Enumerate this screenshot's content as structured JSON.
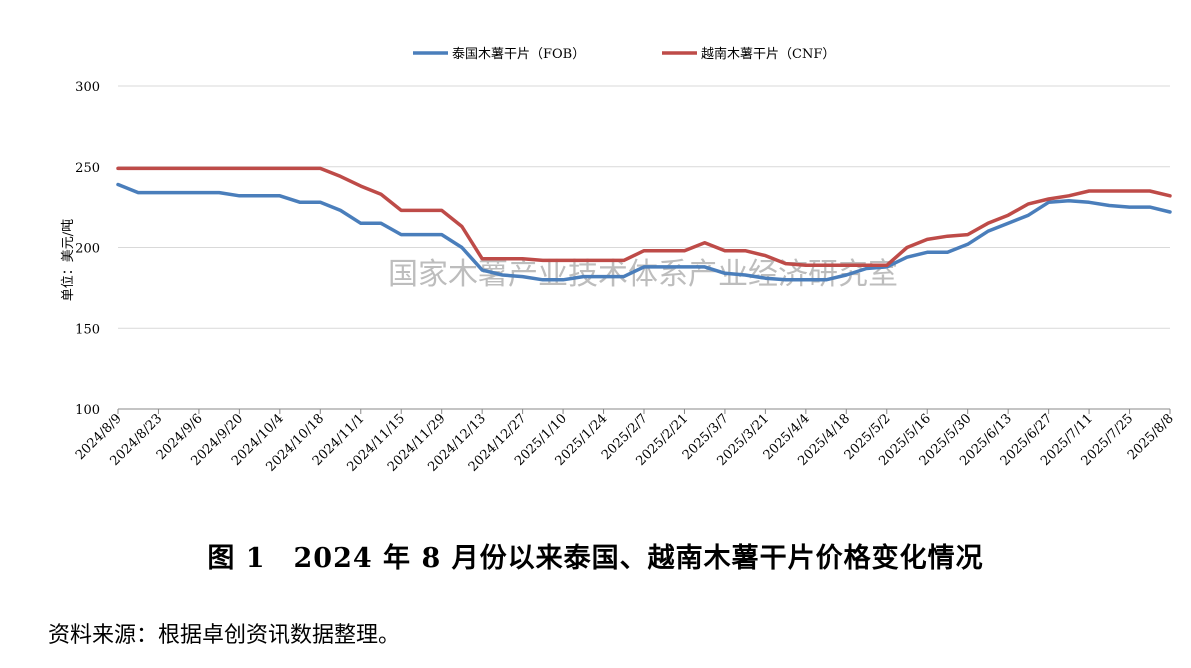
{
  "chart_data": {
    "type": "line",
    "ylabel": "单位：美元/吨",
    "ylim": [
      100,
      300
    ],
    "yticks": [
      100,
      150,
      200,
      250,
      300
    ],
    "grid": true,
    "legend_position": "top-center",
    "watermark": "国家木薯产业技术体系产业经济研究室",
    "x": [
      "2024/8/9",
      "2024/8/16",
      "2024/8/23",
      "2024/8/30",
      "2024/9/6",
      "2024/9/13",
      "2024/9/20",
      "2024/9/27",
      "2024/10/4",
      "2024/10/11",
      "2024/10/18",
      "2024/10/25",
      "2024/11/1",
      "2024/11/8",
      "2024/11/15",
      "2024/11/22",
      "2024/11/29",
      "2024/12/6",
      "2024/12/13",
      "2024/12/20",
      "2024/12/27",
      "2025/1/3",
      "2025/1/10",
      "2025/1/17",
      "2025/1/24",
      "2025/1/31",
      "2025/2/7",
      "2025/2/14",
      "2025/2/21",
      "2025/2/28",
      "2025/3/7",
      "2025/3/14",
      "2025/3/21",
      "2025/3/28",
      "2025/4/4",
      "2025/4/11",
      "2025/4/18",
      "2025/4/25",
      "2025/5/2",
      "2025/5/9",
      "2025/5/16",
      "2025/5/23",
      "2025/5/30",
      "2025/6/6",
      "2025/6/13",
      "2025/6/20",
      "2025/6/27",
      "2025/7/4",
      "2025/7/11",
      "2025/7/18",
      "2025/7/25",
      "2025/8/1",
      "2025/8/8"
    ],
    "xtick_labels": [
      "2024/8/9",
      "2024/8/23",
      "2024/9/6",
      "2024/9/20",
      "2024/10/4",
      "2024/10/18",
      "2024/11/1",
      "2024/11/15",
      "2024/11/29",
      "2024/12/13",
      "2024/12/27",
      "2025/1/10",
      "2025/1/24",
      "2025/2/7",
      "2025/2/21",
      "2025/3/7",
      "2025/3/21",
      "2025/4/4",
      "2025/4/18",
      "2025/5/2",
      "2025/5/16",
      "2025/5/30",
      "2025/6/13",
      "2025/6/27",
      "2025/7/11",
      "2025/7/25",
      "2025/8/8"
    ],
    "series": [
      {
        "name": "泰国木薯干片（FOB）",
        "color": "#4a7ebb",
        "values": [
          239,
          234,
          234,
          234,
          234,
          234,
          232,
          232,
          232,
          228,
          228,
          223,
          215,
          215,
          208,
          208,
          208,
          200,
          186,
          183,
          182,
          180,
          180,
          182,
          182,
          182,
          188,
          188,
          188,
          188,
          184,
          183,
          181,
          180,
          180,
          180,
          183,
          187,
          188,
          194,
          197,
          197,
          202,
          210,
          215,
          220,
          228,
          229,
          228,
          226,
          225,
          225,
          222
        ]
      },
      {
        "name": "越南木薯干片（CNF）",
        "color": "#be4b48",
        "values": [
          249,
          249,
          249,
          249,
          249,
          249,
          249,
          249,
          249,
          249,
          249,
          244,
          238,
          233,
          223,
          223,
          223,
          213,
          193,
          193,
          193,
          192,
          192,
          192,
          192,
          192,
          198,
          198,
          198,
          203,
          198,
          198,
          195,
          190,
          189,
          189,
          189,
          189,
          189,
          200,
          205,
          207,
          208,
          215,
          220,
          227,
          230,
          232,
          235,
          235,
          235,
          235,
          232
        ]
      }
    ]
  },
  "figure_title": "图 1　2024 年 8 月份以来泰国、越南木薯干片价格变化情况",
  "source_note": "资料来源：根据卓创资讯数据整理。"
}
